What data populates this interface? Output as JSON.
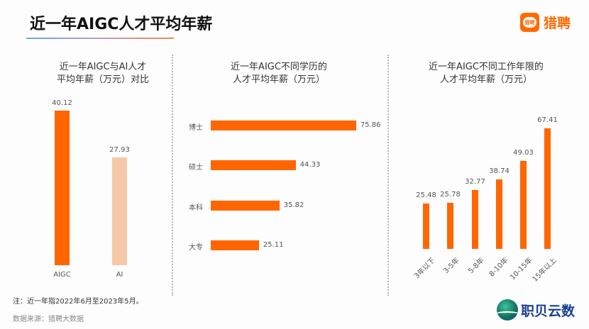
{
  "header": {
    "title": "近一年AIGC人才平均年薪",
    "brand": {
      "icon_text": "猎聘",
      "name": "猎聘"
    }
  },
  "footer": {
    "note": "注：近一年指2022年6月至2023年5月。",
    "source": "数据来源：猎聘大数据",
    "watermark": "职贝云数"
  },
  "colors": {
    "accent": "#ff6600",
    "secondary": "#f6c8a8"
  },
  "chart_data": [
    {
      "type": "bar",
      "title": "近一年AIGC与AI人才平均年薪（万元）对比",
      "title_lines": [
        "近一年AIGC与AI人才",
        "平均年薪（万元）对比"
      ],
      "categories": [
        "AIGC",
        "AI"
      ],
      "values": [
        40.12,
        27.93
      ],
      "value_labels": [
        "40.12",
        "27.93"
      ],
      "colors": [
        "#ff6600",
        "#f6c8a8"
      ],
      "orientation": "vertical",
      "grid": false
    },
    {
      "type": "bar",
      "title": "近一年AIGC不同学历的人才平均年薪（万元）",
      "title_lines": [
        "近一年AIGC不同学历的",
        "人才平均年薪（万元）"
      ],
      "categories": [
        "博士",
        "硕士",
        "本科",
        "大专"
      ],
      "values": [
        75.86,
        44.33,
        35.82,
        25.11
      ],
      "value_labels": [
        "75.86",
        "44.33",
        "35.82",
        "25.11"
      ],
      "orientation": "horizontal",
      "grid": false
    },
    {
      "type": "bar",
      "title": "近一年AIGC不同工作年限的人才平均年薪（万元）",
      "title_lines": [
        "近一年AIGC不同工作年限的",
        "人才平均年薪（万元）"
      ],
      "categories": [
        "3年以下",
        "3-5年",
        "5-8年",
        "8-10年",
        "10-15年",
        "15年以上"
      ],
      "values": [
        25.48,
        25.78,
        32.77,
        38.74,
        49.03,
        67.41
      ],
      "value_labels": [
        "25.48",
        "25.78",
        "32.77",
        "38.74",
        "49.03",
        "67.41"
      ],
      "orientation": "vertical",
      "grid": false
    }
  ]
}
